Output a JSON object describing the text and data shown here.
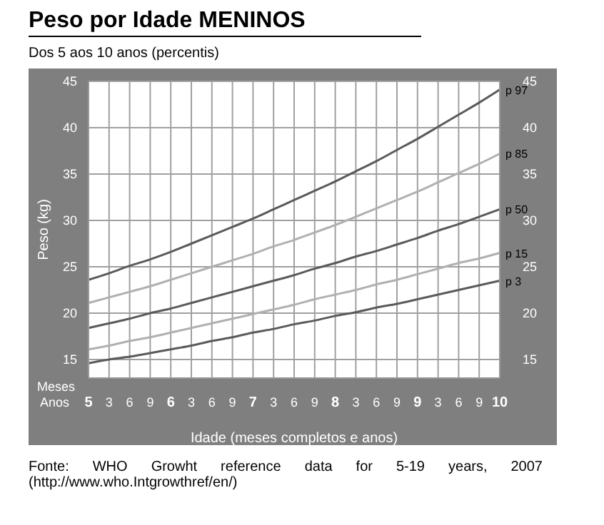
{
  "chart_data": {
    "type": "line",
    "title": "Peso por Idade MENINOS",
    "subtitle": "Dos 5 aos 10 anos (percentis)",
    "xlabel": "Idade (meses completos e anos)",
    "ylabel": "Peso (kg)",
    "categories": [
      "5",
      "3",
      "6",
      "9",
      "6",
      "3",
      "6",
      "9",
      "7",
      "3",
      "6",
      "9",
      "8",
      "3",
      "6",
      "9",
      "9",
      "3",
      "6",
      "9",
      "10"
    ],
    "series": [
      {
        "name": "p 97",
        "color": "#5a5a5a",
        "values": [
          23.6,
          24.3,
          25.1,
          25.8,
          26.6,
          27.5,
          28.4,
          29.3,
          30.2,
          31.2,
          32.2,
          33.2,
          34.2,
          35.3,
          36.4,
          37.6,
          38.8,
          40.1,
          41.4,
          42.7,
          44.1
        ]
      },
      {
        "name": "p 85",
        "color": "#b0b0b0",
        "values": [
          21.1,
          21.7,
          22.3,
          22.9,
          23.6,
          24.3,
          25.0,
          25.7,
          26.4,
          27.2,
          27.9,
          28.7,
          29.5,
          30.4,
          31.3,
          32.2,
          33.1,
          34.1,
          35.1,
          36.1,
          37.2
        ]
      },
      {
        "name": "p 50",
        "color": "#5a5a5a",
        "values": [
          18.4,
          18.9,
          19.4,
          20.0,
          20.5,
          21.1,
          21.7,
          22.3,
          22.9,
          23.5,
          24.1,
          24.8,
          25.4,
          26.1,
          26.7,
          27.4,
          28.1,
          28.9,
          29.6,
          30.4,
          31.2
        ]
      },
      {
        "name": "p 15",
        "color": "#b0b0b0",
        "values": [
          16.1,
          16.5,
          17.0,
          17.4,
          17.9,
          18.4,
          18.9,
          19.4,
          19.9,
          20.4,
          20.9,
          21.5,
          22.0,
          22.5,
          23.1,
          23.6,
          24.2,
          24.8,
          25.4,
          25.9,
          26.5
        ]
      },
      {
        "name": "p 3",
        "color": "#5a5a5a",
        "values": [
          14.6,
          15.0,
          15.3,
          15.7,
          16.1,
          16.5,
          17.0,
          17.4,
          17.9,
          18.3,
          18.8,
          19.2,
          19.7,
          20.1,
          20.6,
          21.0,
          21.5,
          22.0,
          22.5,
          23.0,
          23.5
        ]
      }
    ],
    "ylim": [
      13,
      45
    ],
    "yticks": [
      15,
      20,
      25,
      30,
      35,
      40,
      45
    ],
    "y2lim": [
      13,
      45
    ],
    "y2ticks": [
      15,
      20,
      25,
      30,
      35,
      40,
      45
    ],
    "grid": true,
    "legend": false,
    "marker": "none",
    "line_style": "solid",
    "annotations": [
      "Meses",
      "Anos",
      "Fonte: WHO Growht reference data for 5-19 years, 2007 (http://www.who.Intgrowthref/en/)"
    ]
  }
}
